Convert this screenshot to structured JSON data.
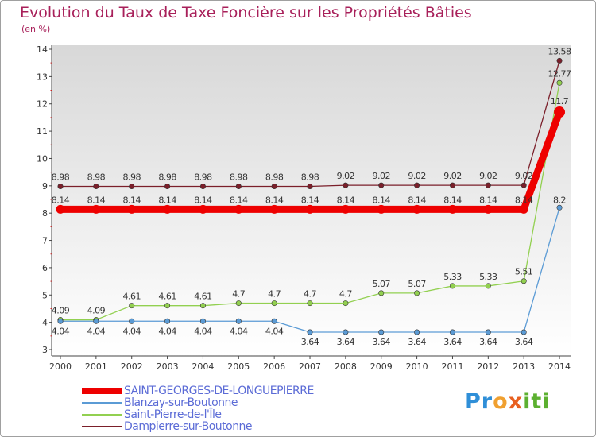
{
  "chart_data": {
    "type": "line",
    "title": "Evolution du Taux de Taxe Foncière sur les Propriétés Bâties",
    "ylabel": "(en %)",
    "xlabel": "",
    "ylim": [
      3,
      14
    ],
    "yticks": [
      3,
      4,
      5,
      6,
      7,
      8,
      9,
      10,
      11,
      12,
      13,
      14
    ],
    "grid": false,
    "categories": [
      "2000",
      "2001",
      "2002",
      "2003",
      "2004",
      "2005",
      "2006",
      "2007",
      "2008",
      "2009",
      "2010",
      "2011",
      "2012",
      "2013",
      "2014"
    ],
    "series": [
      {
        "name": "SAINT-GEORGES-DE-LONGUEPIERRE",
        "color": "#ee0000",
        "values": [
          8.14,
          8.14,
          8.14,
          8.14,
          8.14,
          8.14,
          8.14,
          8.14,
          8.14,
          8.14,
          8.14,
          8.14,
          8.14,
          8.14,
          11.7
        ],
        "labels": [
          "8.14",
          "8.14",
          "8.14",
          "8.14",
          "8.14",
          "8.14",
          "8.14",
          "8.14",
          "8.14",
          "8.14",
          "8.14",
          "8.14",
          "8.14",
          "8.14",
          "11.7"
        ]
      },
      {
        "name": "Blanzay-sur-Boutonne",
        "color": "#5b9bd5",
        "values": [
          4.04,
          4.04,
          4.04,
          4.04,
          4.04,
          4.04,
          4.04,
          3.64,
          3.64,
          3.64,
          3.64,
          3.64,
          3.64,
          3.64,
          8.2
        ],
        "labels": [
          "4.04",
          "4.04",
          "4.04",
          "4.04",
          "4.04",
          "4.04",
          "4.04",
          "3.64",
          "3.64",
          "3.64",
          "3.64",
          "3.64",
          "3.64",
          "3.64",
          "8.2"
        ]
      },
      {
        "name": "Saint-Pierre-de-l'Île",
        "color": "#92d050",
        "values": [
          4.09,
          4.09,
          4.61,
          4.61,
          4.61,
          4.7,
          4.7,
          4.7,
          4.7,
          5.07,
          5.07,
          5.33,
          5.33,
          5.51,
          12.77
        ],
        "labels": [
          "4.09",
          "4.09",
          "4.61",
          "4.61",
          "4.61",
          "4.7",
          "4.7",
          "4.7",
          "4.7",
          "5.07",
          "5.07",
          "5.33",
          "5.33",
          "5.51",
          "12.77"
        ]
      },
      {
        "name": "Dampierre-sur-Boutonne",
        "color": "#7b1f2a",
        "values": [
          8.98,
          8.98,
          8.98,
          8.98,
          8.98,
          8.98,
          8.98,
          8.98,
          9.02,
          9.02,
          9.02,
          9.02,
          9.02,
          9.02,
          13.58
        ],
        "labels": [
          "8.98",
          "8.98",
          "8.98",
          "8.98",
          "8.98",
          "8.98",
          "8.98",
          "8.98",
          "9.02",
          "9.02",
          "9.02",
          "9.02",
          "9.02",
          "9.02",
          "13.58"
        ]
      }
    ],
    "legend_position": "bottom-left"
  },
  "branding": {
    "logo_text": "Proxiti",
    "logo_letters": [
      {
        "ch": "P",
        "color": "#2f8fd8"
      },
      {
        "ch": "r",
        "color": "#2f8fd8"
      },
      {
        "ch": "o",
        "color": "#f0a030"
      },
      {
        "ch": "x",
        "color": "#e86020"
      },
      {
        "ch": "i",
        "color": "#5cb030"
      },
      {
        "ch": "t",
        "color": "#5cb030"
      },
      {
        "ch": "i",
        "color": "#5cb030"
      }
    ]
  }
}
